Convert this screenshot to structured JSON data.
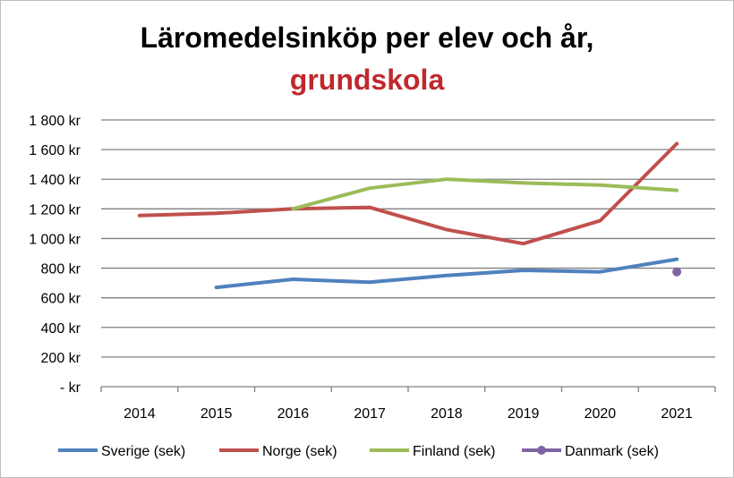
{
  "chart_data": {
    "type": "line",
    "title": "Läromedelsinköp per elev och år,",
    "subtitle": "grundskola",
    "xlabel": "",
    "ylabel": "",
    "categories": [
      "2014",
      "2015",
      "2016",
      "2017",
      "2018",
      "2019",
      "2020",
      "2021"
    ],
    "ylim": [
      0,
      1800
    ],
    "yticks": [
      0,
      200,
      400,
      600,
      800,
      1000,
      1200,
      1400,
      1600,
      1800
    ],
    "ytick_labels": [
      "-   kr",
      "200 kr",
      "400 kr",
      "600 kr",
      "800 kr",
      "1 000 kr",
      "1 200 kr",
      "1 400 kr",
      "1 600 kr",
      "1 800 kr"
    ],
    "grid": true,
    "legend_position": "bottom",
    "series": [
      {
        "name": "Sverige (sek)",
        "color": "#4f81bd",
        "style": "line",
        "values": [
          null,
          670,
          725,
          705,
          750,
          785,
          775,
          860
        ]
      },
      {
        "name": "Norge (sek)",
        "color": "#c0504d",
        "style": "line",
        "values": [
          1155,
          1170,
          1200,
          1210,
          1060,
          965,
          1120,
          1640
        ]
      },
      {
        "name": "Finland (sek)",
        "color": "#9bbb59",
        "style": "line",
        "values": [
          null,
          null,
          1200,
          1340,
          1400,
          1375,
          1360,
          1325
        ]
      },
      {
        "name": "Danmark (sek)",
        "color": "#8064a2",
        "style": "marker",
        "values": [
          null,
          null,
          null,
          null,
          null,
          null,
          null,
          775
        ]
      }
    ],
    "title_colors": {
      "title": "#000000",
      "subtitle": "#c0282c"
    }
  }
}
